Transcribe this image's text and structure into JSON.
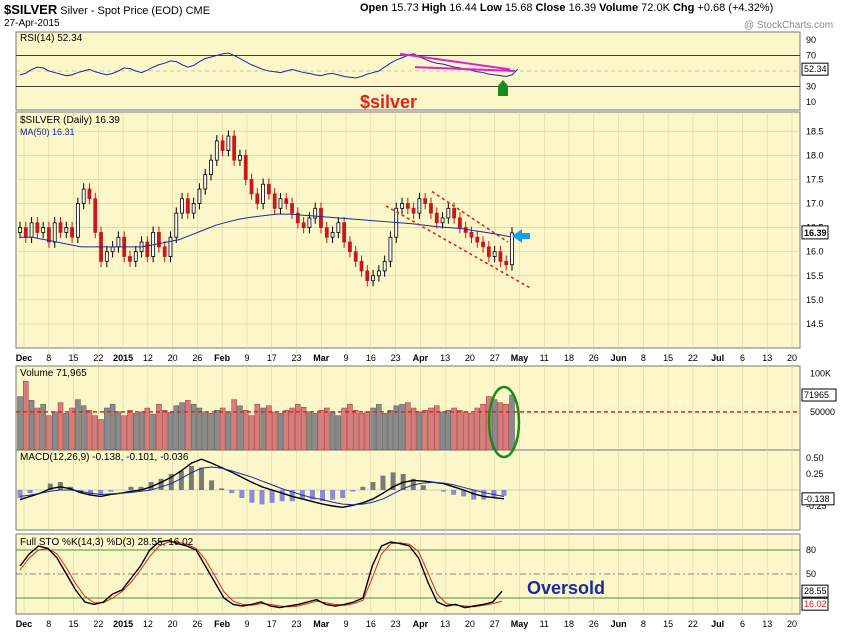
{
  "header": {
    "symbol": "$SILVER",
    "description": "Silver - Spot Price (EOD)",
    "exchange": "CME",
    "date": "27-Apr-2015",
    "watermark": "@ StockCharts.com",
    "ohlc": {
      "open_label": "Open",
      "open": "15.73",
      "high_label": "High",
      "high": "16.44",
      "low_label": "Low",
      "low": "15.68",
      "close_label": "Close",
      "close": "16.39",
      "volume_label": "Volume",
      "volume": "72.0K",
      "chg_label": "Chg",
      "chg": "+0.68 (+4.32%)"
    }
  },
  "annotations": {
    "title_overlay": "$silver",
    "oversold": "Oversold"
  },
  "colors": {
    "panel_bg": "#fbf7c8",
    "grid": "#d6cfa6",
    "up_candle": "#000000",
    "down_candle": "#c8181c",
    "ma50": "#1a2aa0",
    "annotation_red": "#e8201c",
    "annotation_blue": "#1a2aa0",
    "magenta": "#e020d0",
    "green": "#1a8a1a",
    "arrow_blue": "#18a0f0"
  },
  "chart_data": [
    {
      "type": "line",
      "panel": "rsi",
      "legend": "RSI(14) 52.34",
      "ylim": [
        0,
        100
      ],
      "yticks": [
        10,
        30,
        50,
        70,
        90
      ],
      "reference_lines": [
        30,
        70
      ],
      "last_value_label": "52.34",
      "last_value": 52.34,
      "series": [
        {
          "values": [
            45,
            47,
            52,
            55,
            54,
            50,
            48,
            46,
            44,
            45,
            48,
            50,
            52,
            49,
            47,
            45,
            47,
            50,
            54,
            53,
            50,
            48,
            51,
            55,
            58,
            60,
            63,
            62,
            58,
            55,
            57,
            62,
            66,
            68,
            70,
            72,
            73,
            70,
            66,
            62,
            58,
            55,
            52,
            50,
            49,
            48,
            50,
            52,
            50,
            48,
            47,
            45,
            44,
            46,
            47,
            45,
            43,
            42,
            41,
            43,
            46,
            48,
            50,
            55,
            60,
            64,
            67,
            70,
            72,
            68,
            65,
            62,
            60,
            59,
            57,
            55,
            54,
            52,
            51,
            49,
            48,
            46,
            45,
            44,
            43,
            45,
            52.34
          ]
        }
      ]
    },
    {
      "type": "candlestick",
      "panel": "price",
      "legend": "$SILVER (Daily) 16.39",
      "ma_legend": "MA(50) 16.31",
      "ylim": [
        14.0,
        18.9
      ],
      "yticks": [
        14.5,
        15.0,
        15.5,
        16.0,
        16.5,
        17.0,
        17.5,
        18.0,
        18.5
      ],
      "last_value_label": "16.39",
      "last_value": 16.39,
      "x_tick_labels": [
        "Dec",
        "8",
        "15",
        "22",
        "2015",
        "12",
        "20",
        "26",
        "Feb",
        "9",
        "17",
        "23",
        "Mar",
        "9",
        "16",
        "23",
        "Apr",
        "13",
        "20",
        "27",
        "May",
        "11",
        "18",
        "26",
        "Jun",
        "8",
        "15",
        "22",
        "Jul",
        "6",
        "13",
        "20"
      ],
      "ohlc_close": [
        16.5,
        16.3,
        16.6,
        16.4,
        16.5,
        16.2,
        16.6,
        16.4,
        16.5,
        16.3,
        17.0,
        17.3,
        17.1,
        16.4,
        15.8,
        16.0,
        16.1,
        16.3,
        15.9,
        15.8,
        16.0,
        16.2,
        15.9,
        16.4,
        16.1,
        15.9,
        16.3,
        16.8,
        17.1,
        16.8,
        17.0,
        17.3,
        17.6,
        17.9,
        18.3,
        18.1,
        18.4,
        17.9,
        18.0,
        17.5,
        17.2,
        17.0,
        17.4,
        17.2,
        16.9,
        17.1,
        17.0,
        16.8,
        16.6,
        16.5,
        16.7,
        16.9,
        16.5,
        16.3,
        16.4,
        16.6,
        16.2,
        16.0,
        15.8,
        15.6,
        15.4,
        15.5,
        15.6,
        15.8,
        16.3,
        16.9,
        17.0,
        16.9,
        16.8,
        17.1,
        17.0,
        16.8,
        16.6,
        16.7,
        16.9,
        16.7,
        16.5,
        16.4,
        16.3,
        16.2,
        16.1,
        15.9,
        16.0,
        15.8,
        15.73,
        16.39
      ],
      "ma50": [
        16.3,
        16.3,
        16.25,
        16.2,
        16.15,
        16.1,
        16.1,
        16.1,
        16.1,
        16.1,
        16.1,
        16.15,
        16.2,
        16.25,
        16.35,
        16.45,
        16.55,
        16.62,
        16.68,
        16.72,
        16.75,
        16.78,
        16.78,
        16.76,
        16.74,
        16.72,
        16.7,
        16.68,
        16.66,
        16.64,
        16.62,
        16.6,
        16.58,
        16.55,
        16.52,
        16.5,
        16.48,
        16.44,
        16.4,
        16.36,
        16.31
      ],
      "trendlines": [
        {
          "color": "red",
          "style": "dotted",
          "points": [
            [
              17.25,
              16.95
            ],
            [
              16.2,
              15.25
            ]
          ]
        }
      ]
    },
    {
      "type": "bar",
      "panel": "volume",
      "legend": "Volume 71,965",
      "yticks_labels": [
        "100K",
        "50000"
      ],
      "last_value_label": "71965",
      "last_value": 71965,
      "reference_line": 50000,
      "values": [
        70,
        90,
        65,
        55,
        60,
        45,
        50,
        62,
        48,
        55,
        66,
        58,
        52,
        45,
        40,
        55,
        60,
        50,
        45,
        52,
        48,
        50,
        55,
        47,
        60,
        52,
        49,
        58,
        62,
        65,
        60,
        55,
        50,
        48,
        52,
        55,
        50,
        66,
        58,
        52,
        45,
        60,
        55,
        58,
        50,
        48,
        52,
        55,
        60,
        56,
        50,
        48,
        52,
        55,
        50,
        45,
        55,
        60,
        52,
        48,
        50,
        55,
        60,
        48,
        52,
        58,
        60,
        62,
        55,
        50,
        52,
        55,
        58,
        50,
        52,
        55,
        52,
        50,
        48,
        55,
        60,
        70,
        66,
        62,
        60,
        72
      ]
    },
    {
      "type": "line",
      "panel": "macd",
      "legend": "MACD(12,26,9) -0.138, -0.101, -0.036",
      "yticks": [
        0.5,
        0.25,
        -0.25
      ],
      "last_value_labels": [
        "-0.138"
      ],
      "macd": [
        -0.15,
        -0.1,
        -0.05,
        0.02,
        0.05,
        0.02,
        -0.04,
        -0.08,
        -0.1,
        -0.07,
        -0.05,
        -0.02,
        0.0,
        0.05,
        0.12,
        0.2,
        0.3,
        0.42,
        0.48,
        0.42,
        0.35,
        0.28,
        0.2,
        0.12,
        0.05,
        0.0,
        -0.05,
        -0.1,
        -0.14,
        -0.18,
        -0.22,
        -0.25,
        -0.27,
        -0.24,
        -0.2,
        -0.14,
        -0.05,
        0.05,
        0.12,
        0.15,
        0.14,
        0.12,
        0.1,
        0.05,
        0.0,
        -0.06,
        -0.1,
        -0.12,
        -0.138
      ],
      "signal": [
        -0.1,
        -0.08,
        -0.05,
        -0.02,
        0.0,
        0.0,
        -0.02,
        -0.05,
        -0.07,
        -0.06,
        -0.05,
        -0.04,
        -0.02,
        0.0,
        0.05,
        0.1,
        0.18,
        0.27,
        0.34,
        0.36,
        0.34,
        0.3,
        0.25,
        0.2,
        0.14,
        0.08,
        0.02,
        -0.03,
        -0.08,
        -0.12,
        -0.15,
        -0.19,
        -0.22,
        -0.23,
        -0.22,
        -0.19,
        -0.14,
        -0.06,
        0.02,
        0.08,
        0.11,
        0.12,
        0.11,
        0.08,
        0.04,
        0.0,
        -0.04,
        -0.07,
        -0.101
      ]
    },
    {
      "type": "line",
      "panel": "stochastic",
      "legend": "Full STO %K(14,3) %D(3) 28.55, 16.02",
      "ylim": [
        0,
        100
      ],
      "yticks": [
        20,
        50,
        80
      ],
      "last_value_labels": [
        "28.55",
        "16.02"
      ],
      "k": [
        60,
        75,
        85,
        82,
        70,
        50,
        30,
        15,
        12,
        15,
        25,
        30,
        45,
        60,
        80,
        90,
        92,
        88,
        85,
        80,
        60,
        40,
        20,
        12,
        10,
        12,
        15,
        10,
        8,
        10,
        12,
        15,
        18,
        12,
        10,
        12,
        15,
        20,
        60,
        85,
        90,
        88,
        85,
        70,
        40,
        15,
        10,
        12,
        8,
        10,
        12,
        15,
        28.55
      ],
      "d": [
        55,
        70,
        80,
        82,
        75,
        58,
        38,
        22,
        14,
        14,
        20,
        28,
        40,
        55,
        72,
        85,
        90,
        90,
        87,
        82,
        68,
        48,
        28,
        16,
        12,
        11,
        13,
        12,
        10,
        9,
        10,
        13,
        16,
        14,
        12,
        11,
        13,
        17,
        45,
        75,
        88,
        89,
        87,
        78,
        52,
        25,
        13,
        11,
        10,
        9,
        11,
        13,
        16.02
      ]
    }
  ]
}
